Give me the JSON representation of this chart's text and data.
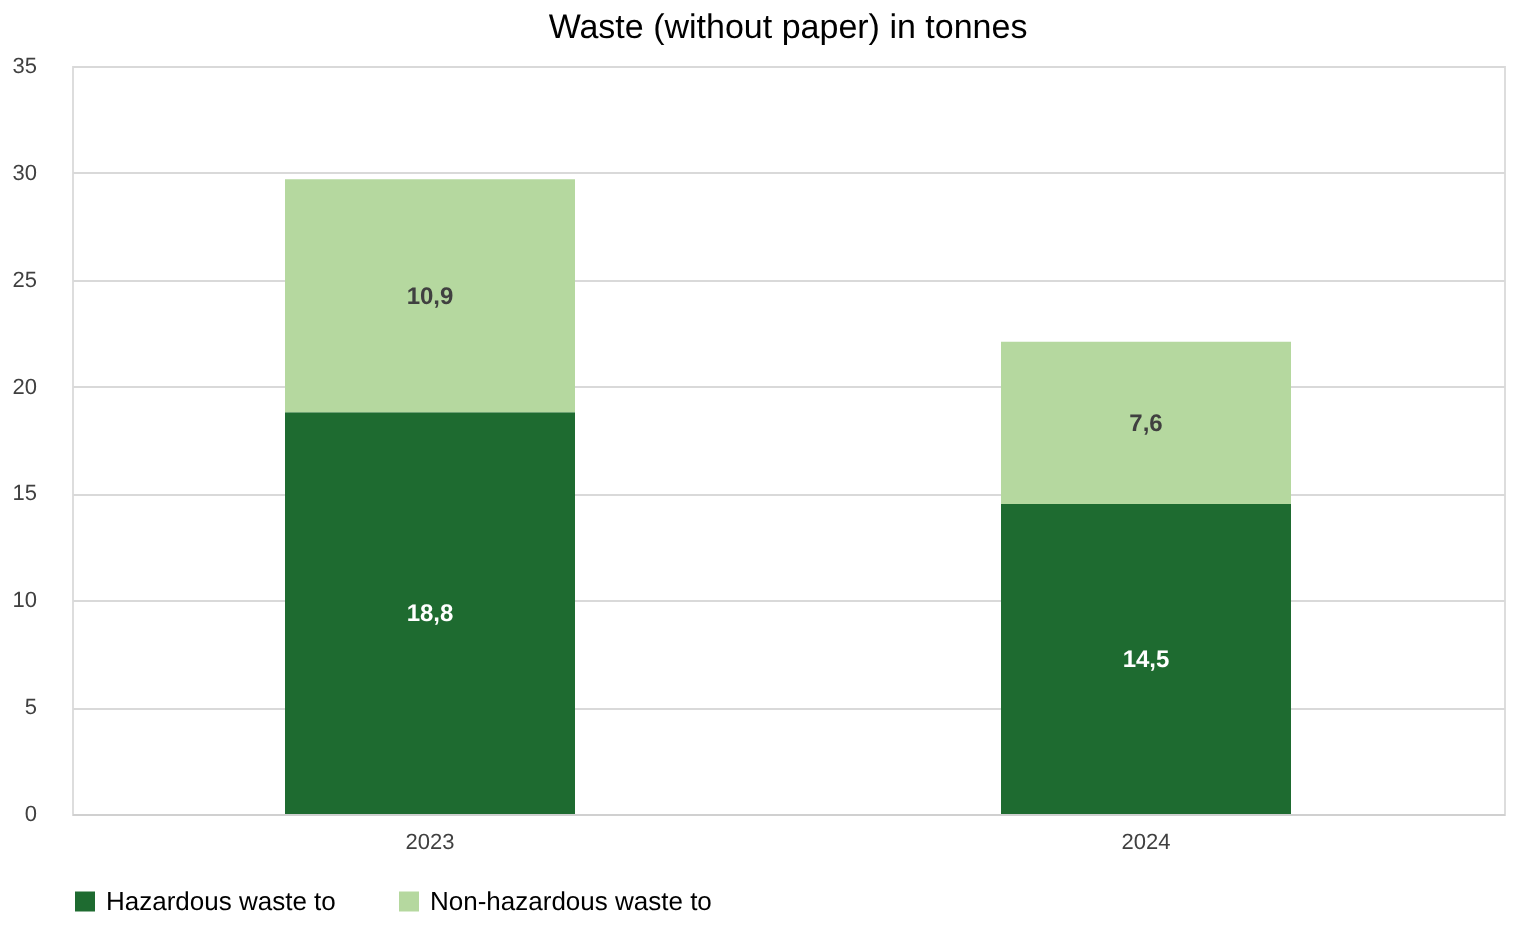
{
  "chart_data": {
    "type": "bar",
    "title": "Waste (without paper) in tonnes",
    "stacked": true,
    "categories": [
      "2023",
      "2024"
    ],
    "series": [
      {
        "name": "Hazardous waste to",
        "color": "#1e6b30",
        "values": [
          18.8,
          14.5
        ],
        "value_labels": [
          "18,8",
          "14,5"
        ]
      },
      {
        "name": "Non-hazardous waste to",
        "color": "#b5d89f",
        "values": [
          10.9,
          7.6
        ],
        "value_labels": [
          "10,9",
          "7,6"
        ]
      }
    ],
    "ylim": [
      0,
      35
    ],
    "yticks": [
      0,
      5,
      10,
      15,
      20,
      25,
      30,
      35
    ],
    "grid": "y",
    "legend": "bottom"
  }
}
